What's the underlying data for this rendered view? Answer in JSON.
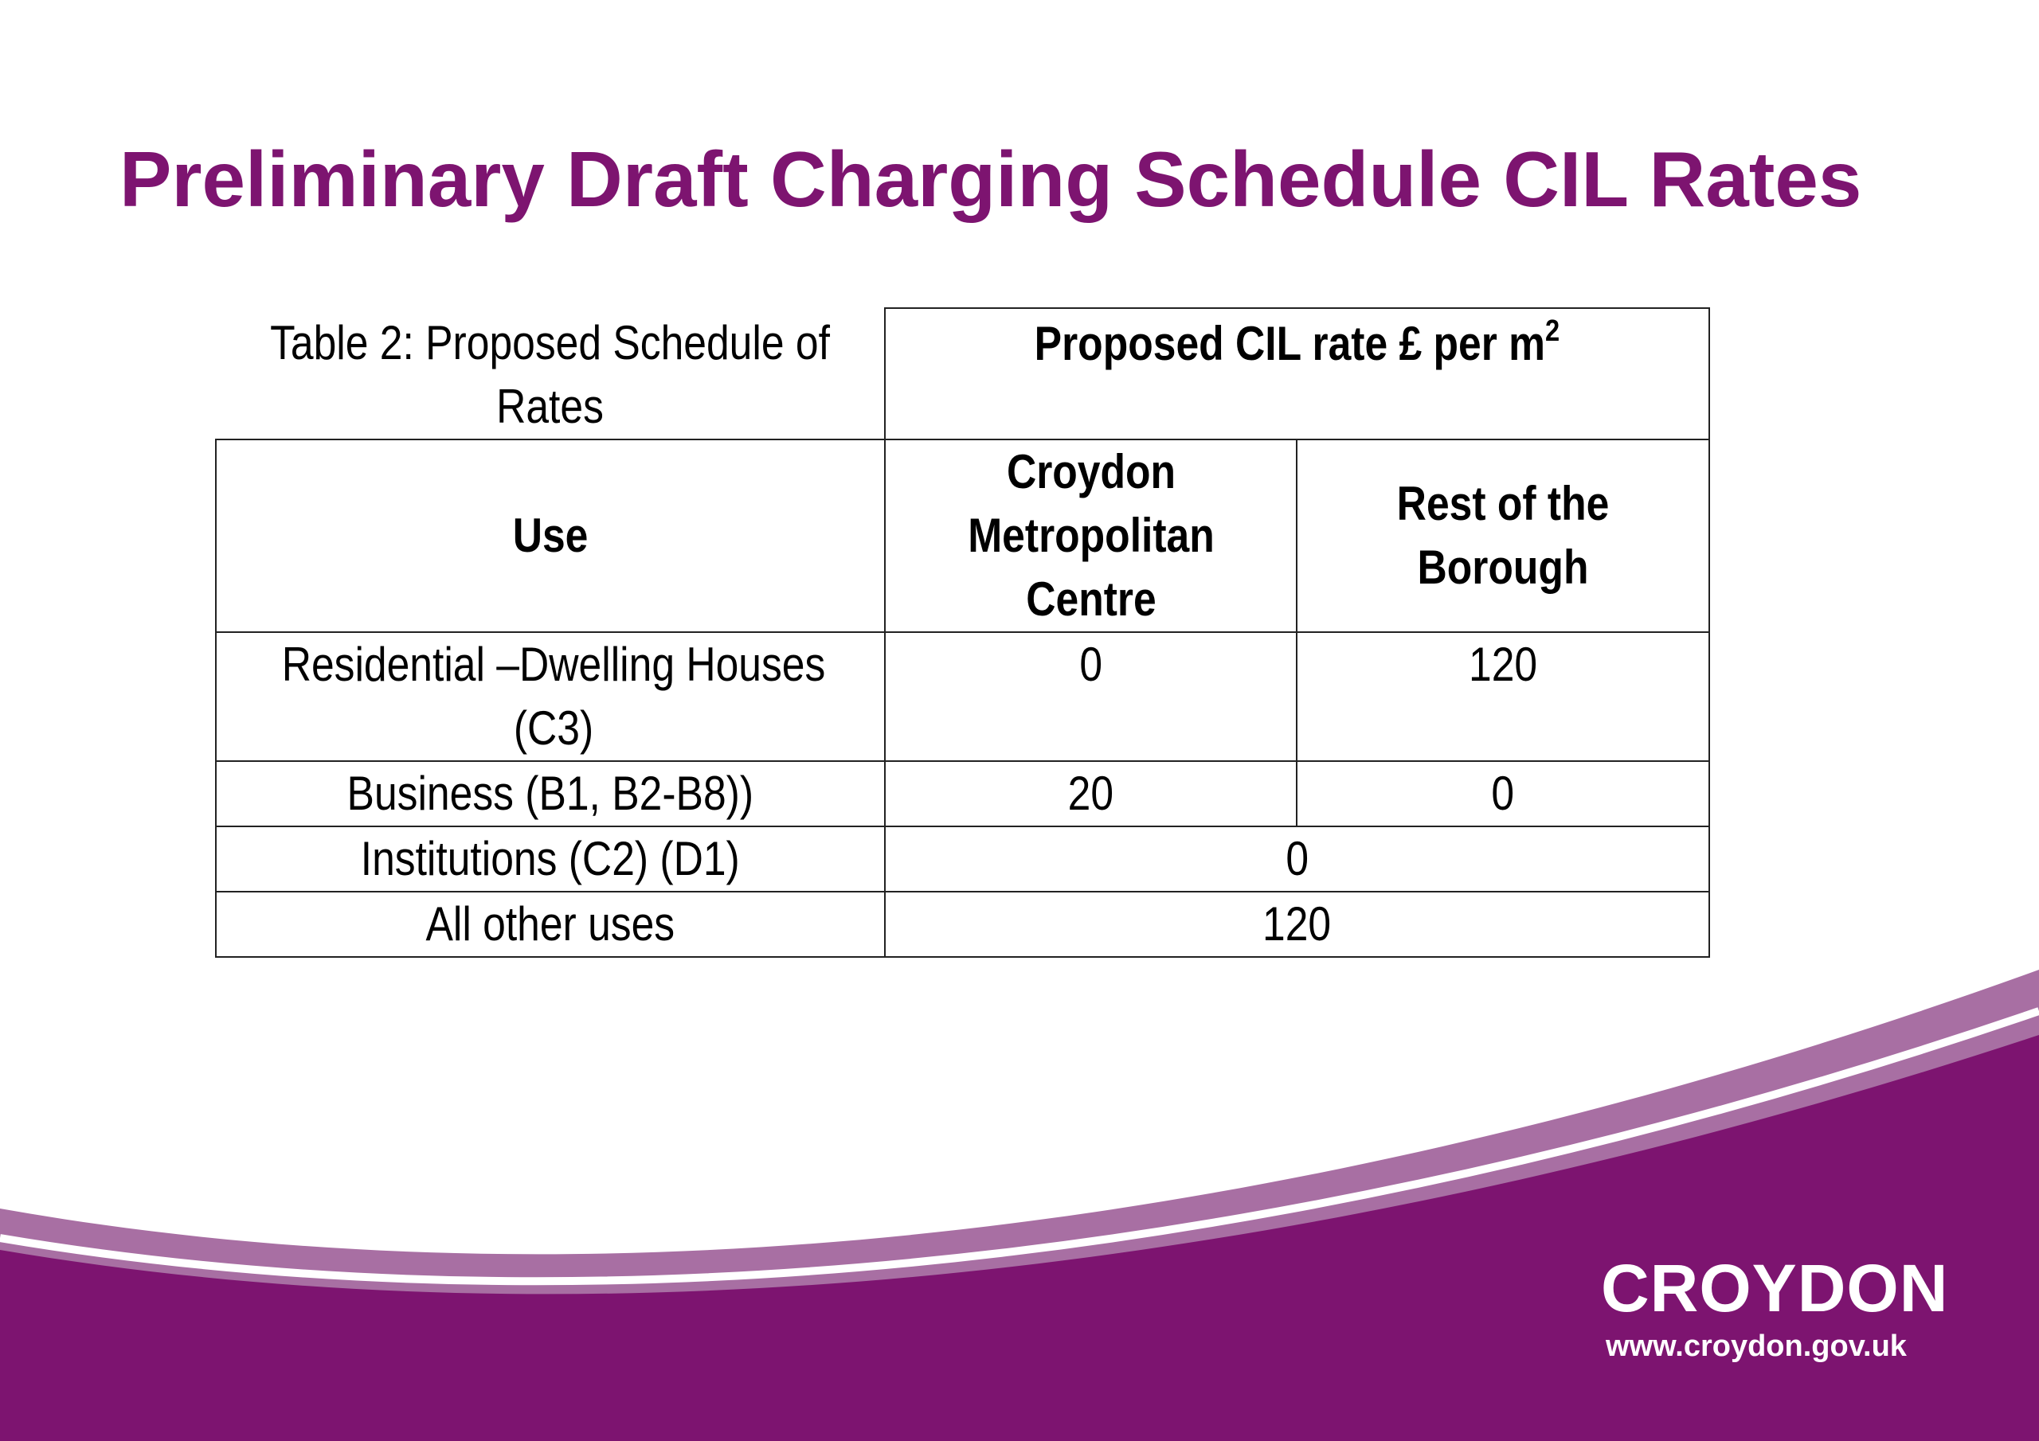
{
  "slide": {
    "title": "Preliminary Draft Charging Schedule CIL Rates",
    "colors": {
      "brand_purple": "#7d1470",
      "light_purple": "#a86fa3"
    }
  },
  "table": {
    "caption": "Table 2: Proposed Schedule of Rates",
    "group_header": "Proposed CIL rate £ per m",
    "group_header_sup": "2",
    "columns": [
      "Use",
      "Croydon Metropolitan Centre",
      "Rest of the Borough"
    ],
    "rows": [
      {
        "use": "Residential –Dwelling Houses (C3)",
        "metropolitan_centre": "0",
        "rest_of_borough": "120"
      },
      {
        "use": "Business (B1, B2-B8))",
        "metropolitan_centre": "20",
        "rest_of_borough": "0"
      },
      {
        "use": "Institutions (C2) (D1)",
        "combined": "0"
      },
      {
        "use": "All other uses",
        "combined": "120"
      }
    ]
  },
  "logo": {
    "name": "CROYDON",
    "url": "www.croydon.gov.uk"
  }
}
